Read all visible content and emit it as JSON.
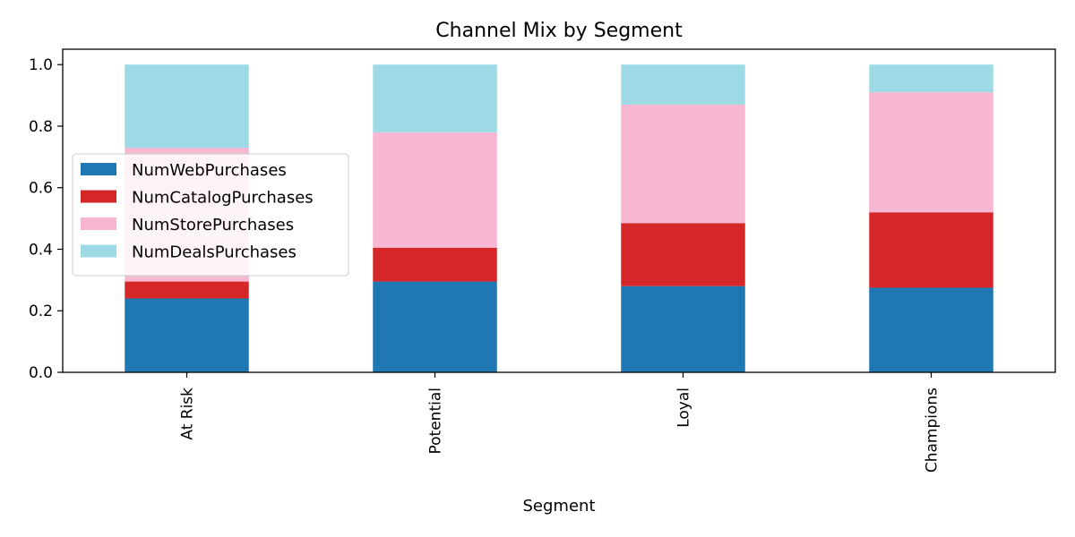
{
  "chart_data": {
    "type": "bar",
    "stacked": true,
    "title": "Channel Mix by Segment",
    "xlabel": "Segment",
    "ylabel": "",
    "ylim": [
      0,
      1.05
    ],
    "yticks": [
      "0.0",
      "0.2",
      "0.4",
      "0.6",
      "0.8",
      "1.0"
    ],
    "categories": [
      "At Risk",
      "Potential",
      "Loyal",
      "Champions"
    ],
    "legend_position": "center-left",
    "grid": false,
    "series": [
      {
        "name": "NumWebPurchases",
        "color": "#1f77b4",
        "values": [
          0.24,
          0.295,
          0.28,
          0.275
        ]
      },
      {
        "name": "NumCatalogPurchases",
        "color": "#d62728",
        "values": [
          0.055,
          0.11,
          0.205,
          0.245
        ]
      },
      {
        "name": "NumStorePurchases",
        "color": "#f7b6d2",
        "values": [
          0.435,
          0.375,
          0.385,
          0.39
        ]
      },
      {
        "name": "NumDealsPurchases",
        "color": "#9edae5",
        "values": [
          0.27,
          0.22,
          0.13,
          0.09
        ]
      }
    ]
  }
}
